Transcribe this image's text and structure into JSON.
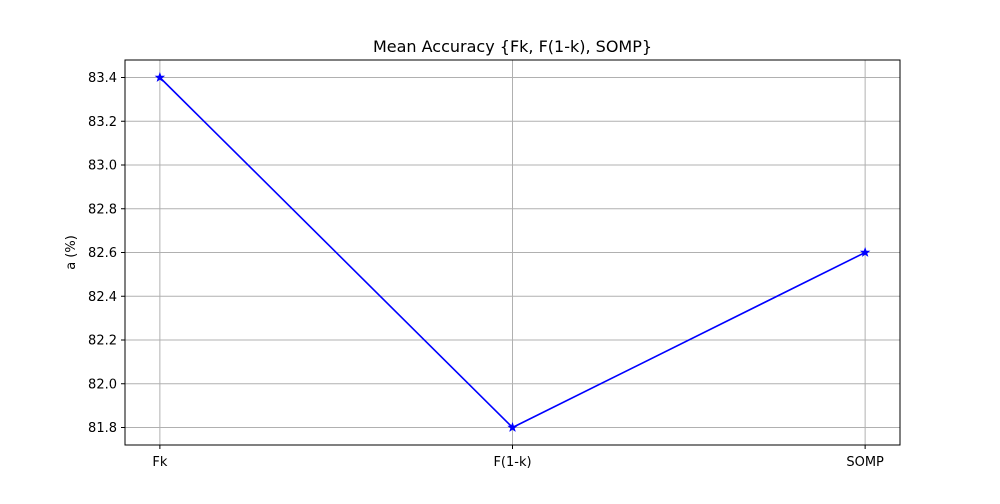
{
  "chart_data": {
    "type": "line",
    "title": "Mean Accuracy {Fk, F(1-k), SOMP}",
    "xlabel": "",
    "ylabel": "a (%)",
    "categories": [
      "Fk",
      "F(1-k)",
      "SOMP"
    ],
    "series": [
      {
        "values": [
          83.4,
          81.8,
          82.6
        ],
        "color": "#0000ff",
        "marker": "star"
      }
    ],
    "ylim": [
      81.72,
      83.48
    ],
    "yticks": [
      "81.8",
      "82.0",
      "82.2",
      "82.4",
      "82.6",
      "82.8",
      "83.0",
      "83.2",
      "83.4"
    ],
    "grid": true,
    "legend": "none"
  }
}
